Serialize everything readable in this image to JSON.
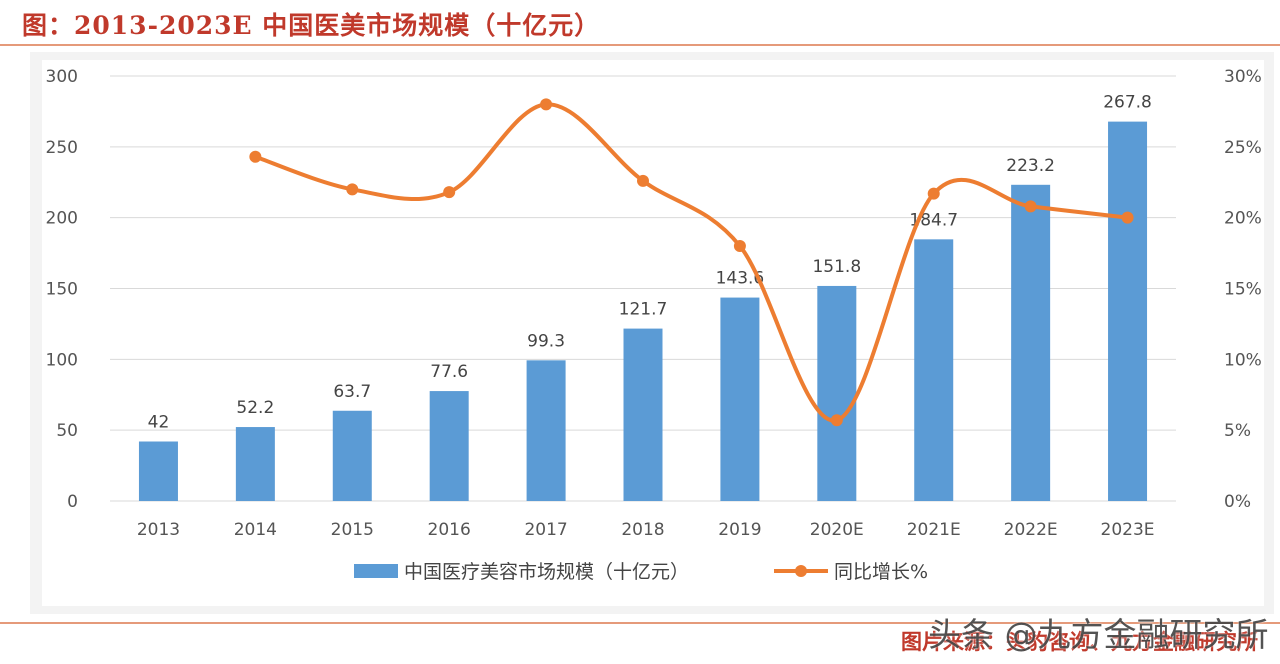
{
  "header": {
    "title": "图：2013-2023E 中国医美市场规模（十亿元）"
  },
  "footer": {
    "source": "图片来源：头豹咨询、九方金融研究所",
    "watermark": "头条 @九方金融研究所"
  },
  "colors": {
    "bar": "#5b9bd5",
    "line": "#ed7d31",
    "title": "#c0392b",
    "grid": "#d9d9d9"
  },
  "chart_data": {
    "type": "bar",
    "title": "",
    "categories": [
      "2013",
      "2014",
      "2015",
      "2016",
      "2017",
      "2018",
      "2019",
      "2020E",
      "2021E",
      "2022E",
      "2023E"
    ],
    "series": [
      {
        "name": "中国医疗美容市场规模（十亿元）",
        "type": "bar",
        "axis": "left",
        "values": [
          42,
          52.2,
          63.7,
          77.6,
          99.3,
          121.7,
          143.6,
          151.8,
          184.7,
          223.2,
          267.8
        ],
        "labels": [
          "42",
          "52.2",
          "63.7",
          "77.6",
          "99.3",
          "121.7",
          "143.6",
          "151.8",
          "184.7",
          "223.2",
          "267.8"
        ]
      },
      {
        "name": "同比增长%",
        "type": "line",
        "axis": "right",
        "smooth": true,
        "values": [
          null,
          24.3,
          22.0,
          21.8,
          28.0,
          22.6,
          18.0,
          5.7,
          21.7,
          20.8,
          20.0
        ]
      }
    ],
    "y_left": {
      "ylim": [
        0,
        300
      ],
      "ticks": [
        "0",
        "50",
        "100",
        "150",
        "200",
        "250",
        "300"
      ],
      "tick_values": [
        0,
        50,
        100,
        150,
        200,
        250,
        300
      ]
    },
    "y_right": {
      "ylim": [
        0,
        30
      ],
      "ticks": [
        "0%",
        "5%",
        "10%",
        "15%",
        "20%",
        "25%",
        "30%"
      ],
      "tick_values": [
        0,
        5,
        10,
        15,
        20,
        25,
        30
      ]
    },
    "grid": true,
    "legend": "bottom"
  }
}
